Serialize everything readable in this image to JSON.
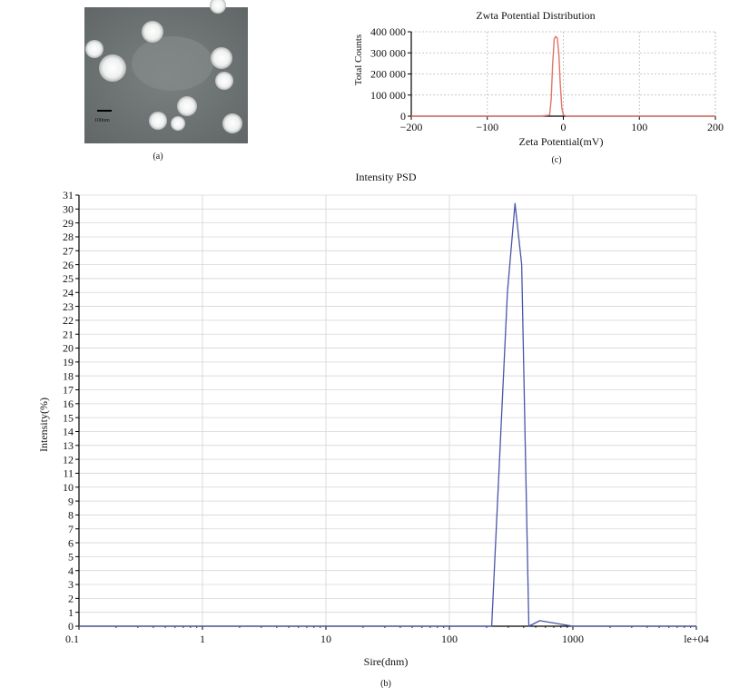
{
  "panel_a": {
    "caption": "(a)",
    "scale_bar_label": "100nm"
  },
  "chart_data": [
    {
      "id": "zeta",
      "panel_caption": "(c)",
      "type": "line",
      "title": "Zwta Potential Distribution",
      "xlabel": "Zeta Potential(mV)",
      "ylabel": "Total Counts",
      "xlim": [
        -200,
        200
      ],
      "ylim": [
        0,
        400000
      ],
      "xticks": [
        -200,
        -100,
        0,
        100,
        200
      ],
      "xtick_labels": [
        "−200",
        "−100",
        "0",
        "100",
        "200"
      ],
      "yticks": [
        0,
        100000,
        200000,
        300000,
        400000
      ],
      "ytick_labels": [
        "0",
        "100 000",
        "200 000",
        "300 000",
        "400 000"
      ],
      "grid": true,
      "series": [
        {
          "name": "Zeta potential distribution",
          "color": "#e07468",
          "x": [
            -200,
            -150,
            -100,
            -60,
            -30,
            -18,
            -16,
            -14,
            -12,
            -10,
            -8,
            -6,
            -4,
            -2,
            0,
            5,
            20,
            100,
            150,
            200
          ],
          "values": [
            0,
            0,
            0,
            0,
            0,
            5000,
            80000,
            250000,
            365000,
            378000,
            370000,
            300000,
            150000,
            40000,
            5000,
            0,
            0,
            0,
            0,
            0
          ]
        }
      ]
    },
    {
      "id": "psd",
      "panel_caption": "(b)",
      "type": "line",
      "title": "Intensity PSD",
      "xlabel": "Sire(dnm)",
      "ylabel": "Intensity(%)",
      "xscale": "log",
      "xlim": [
        0.1,
        10000
      ],
      "ylim": [
        0,
        31
      ],
      "xticks": [
        0.1,
        1,
        10,
        100,
        1000,
        10000
      ],
      "xtick_labels": [
        "0.1",
        "1",
        "10",
        "100",
        "1000",
        "le+04"
      ],
      "yticks": [
        0,
        1,
        2,
        3,
        4,
        5,
        6,
        7,
        8,
        9,
        10,
        11,
        12,
        13,
        14,
        15,
        16,
        17,
        18,
        19,
        20,
        21,
        22,
        23,
        24,
        25,
        26,
        27,
        28,
        29,
        30,
        31
      ],
      "ytick_labels": [
        "0",
        "1",
        "2",
        "3",
        "4",
        "5",
        "6",
        "7",
        "8",
        "9",
        "10",
        "11",
        "12",
        "13",
        "14",
        "15",
        "16",
        "17",
        "18",
        "19",
        "20",
        "21",
        "22",
        "23",
        "24",
        "25",
        "26",
        "27",
        "28",
        "29",
        "30",
        "31"
      ],
      "grid": true,
      "series": [
        {
          "name": "Intensity",
          "color": "#4a55a8",
          "x": [
            0.1,
            1,
            10,
            100,
            220,
            295,
            340,
            385,
            440,
            540,
            1000,
            10000
          ],
          "values": [
            0,
            0,
            0,
            0,
            0,
            24,
            30.4,
            26,
            0,
            0.4,
            0,
            0
          ]
        }
      ]
    }
  ]
}
